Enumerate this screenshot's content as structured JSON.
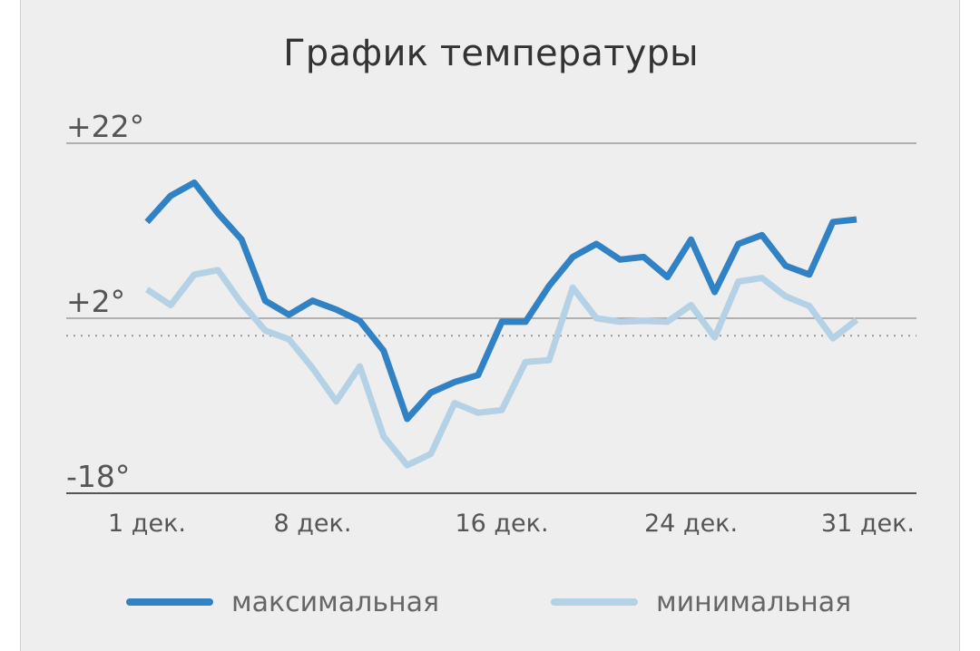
{
  "chart_data": {
    "type": "line",
    "title": "График температуры",
    "xlabel": "",
    "ylabel": "",
    "x_tick_labels": [
      "1 дек.",
      "8 дек.",
      "16 дек.",
      "24 дек.",
      "31 дек."
    ],
    "x_tick_days": [
      1,
      8,
      16,
      24,
      31
    ],
    "y_tick_labels": [
      "+22°",
      "+2°",
      "-18°"
    ],
    "y_ticks": [
      22,
      2,
      -18
    ],
    "ylim": [
      -18,
      22
    ],
    "xlim": [
      1,
      31
    ],
    "zero_line": "dotted",
    "grid": true,
    "legend_position": "bottom",
    "days": [
      1,
      2,
      3,
      4,
      5,
      6,
      7,
      8,
      9,
      10,
      11,
      12,
      13,
      14,
      15,
      16,
      17,
      18,
      19,
      20,
      21,
      22,
      23,
      24,
      25,
      26,
      27,
      28,
      29,
      30,
      31
    ],
    "series": [
      {
        "name": "максимальная",
        "color": "#3182c4",
        "values": [
          13,
          16,
          17.5,
          14,
          11,
          4,
          2.4,
          4,
          3,
          1.7,
          -1.7,
          -9.5,
          -6.5,
          -5.3,
          -4.5,
          1.6,
          1.6,
          5.7,
          9,
          10.5,
          8.7,
          9,
          6.7,
          11,
          5,
          10.5,
          11.5,
          8,
          7,
          13,
          13.3
        ]
      },
      {
        "name": "минимальная",
        "color": "#b4d1e6",
        "values": [
          5.3,
          3.5,
          7,
          7.5,
          3.7,
          0.6,
          -0.4,
          -3.7,
          -7.5,
          -3.5,
          -11.5,
          -14.8,
          -13.5,
          -7.7,
          -8.8,
          -8.5,
          -3,
          -2.8,
          5.5,
          2,
          1.6,
          1.7,
          1.6,
          3.5,
          -0.2,
          6.2,
          6.6,
          4.5,
          3.4,
          -0.3,
          1.8
        ]
      }
    ]
  }
}
